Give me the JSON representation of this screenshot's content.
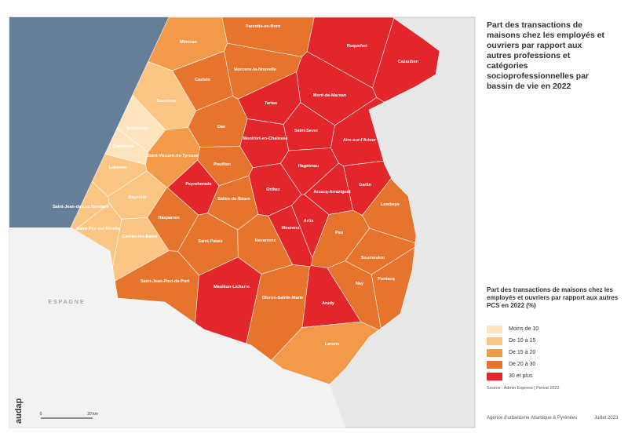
{
  "title": "Part des transactions de maisons chez les employés et ouvriers par rapport aux autres professions et catégories socioprofessionnelles par bassin de vie en 2022",
  "legend": {
    "title": "Part des transactions de maisons chez les employés et ouvriers par rapport aux autres PCS en 2022 (%)",
    "items": [
      {
        "label": "Moins de 10",
        "color": "#fde4bd"
      },
      {
        "label": "De 10 à 15",
        "color": "#fbc583"
      },
      {
        "label": "De 15 à 20",
        "color": "#f3994a"
      },
      {
        "label": "De 20 à 30",
        "color": "#e6742c"
      },
      {
        "label": "30 et plus",
        "color": "#e3262b"
      }
    ]
  },
  "regions": [
    {
      "name": "Parentis-en-Born",
      "class": 3
    },
    {
      "name": "Mimizan",
      "class": 2
    },
    {
      "name": "Morcenx-la-Nouvelle",
      "class": 3
    },
    {
      "name": "Roquefort",
      "class": 4
    },
    {
      "name": "Cazaubon",
      "class": 4
    },
    {
      "name": "Castets",
      "class": 3
    },
    {
      "name": "Soustons",
      "class": 1
    },
    {
      "name": "Seignosse",
      "class": 0
    },
    {
      "name": "Tartas",
      "class": 4
    },
    {
      "name": "Mont-de-Marsan",
      "class": 4
    },
    {
      "name": "Dax",
      "class": 3
    },
    {
      "name": "Saint-Sever",
      "class": 4
    },
    {
      "name": "Montfort-en-Chalosse",
      "class": 4
    },
    {
      "name": "Aire-sur-l'Adour",
      "class": 4
    },
    {
      "name": "Capbreton",
      "class": 0
    },
    {
      "name": "Saint-Vincent-de-Tyrosse",
      "class": 2
    },
    {
      "name": "Labenne",
      "class": 1
    },
    {
      "name": "Peyrehorade",
      "class": 4
    },
    {
      "name": "Pouillon",
      "class": 3
    },
    {
      "name": "Hagetmau",
      "class": 4
    },
    {
      "name": "Orthez",
      "class": 4
    },
    {
      "name": "Arzacq-Arraziguet",
      "class": 4
    },
    {
      "name": "Garlin",
      "class": 4
    },
    {
      "name": "Salies-de-Béarn",
      "class": 3
    },
    {
      "name": "Bayonne",
      "class": 1
    },
    {
      "name": "Lembeye",
      "class": 3
    },
    {
      "name": "Saint-Jean-de-Luz Hendaye",
      "class": 1
    },
    {
      "name": "Hasparren",
      "class": 3
    },
    {
      "name": "Artix",
      "class": 4
    },
    {
      "name": "Mourenx",
      "class": 4
    },
    {
      "name": "Pau",
      "class": 3
    },
    {
      "name": "Cambo-les-Bains",
      "class": 1
    },
    {
      "name": "Saint-Pée-sur-Nivelle",
      "class": 1
    },
    {
      "name": "Saint-Palais",
      "class": 3
    },
    {
      "name": "Navarrenx",
      "class": 3
    },
    {
      "name": "Soumoulou",
      "class": 3
    },
    {
      "name": "Nay",
      "class": 3
    },
    {
      "name": "Pontacq",
      "class": 3
    },
    {
      "name": "Saint-Jean-Pied-de-Port",
      "class": 3
    },
    {
      "name": "Mauléon-Licharre",
      "class": 4
    },
    {
      "name": "Oloron-Sainte-Marie",
      "class": 3
    },
    {
      "name": "Arudy",
      "class": 4
    },
    {
      "name": "Laruns",
      "class": 2
    }
  ],
  "country_label": "ESPAGNE",
  "scale": {
    "start": "0",
    "end": "20 km"
  },
  "logo": "audap",
  "source": "Source : Admin Express | Perval 2022",
  "footer": {
    "agency": "Agence d'urbanisme Atlantique & Pyrénées",
    "date": "Juillet 2023"
  }
}
